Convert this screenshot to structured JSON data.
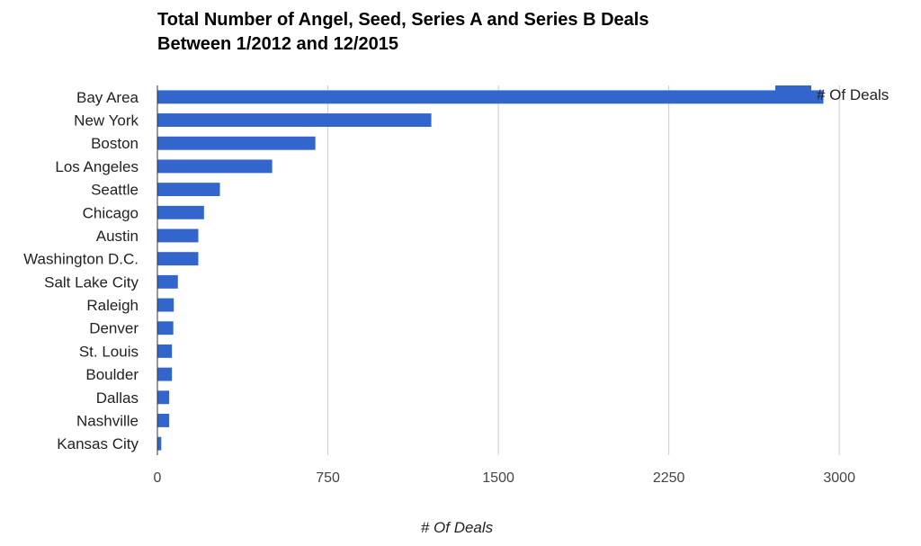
{
  "chart_data": {
    "type": "bar",
    "orientation": "horizontal",
    "title_lines": [
      "Total Number of Angel, Seed, Series A and Series B Deals",
      "Between 1/2012 and 12/2015"
    ],
    "categories": [
      "Bay Area",
      "New York",
      "Boston",
      "Los Angeles",
      "Seattle",
      "Chicago",
      "Austin",
      "Washington D.C.",
      "Salt Lake City",
      "Raleigh",
      "Denver",
      "St. Louis",
      "Boulder",
      "Dallas",
      "Nashville",
      "Kansas City"
    ],
    "series": [
      {
        "name": "# Of Deals",
        "color": "#3366cc",
        "values": [
          2930,
          1205,
          695,
          505,
          275,
          205,
          180,
          180,
          90,
          72,
          70,
          64,
          64,
          52,
          52,
          17
        ]
      }
    ],
    "xlabel": "# Of Deals",
    "ylabel": "",
    "xlim": [
      0,
      3300
    ],
    "xticks": [
      0,
      750,
      1500,
      2250,
      3000
    ],
    "xtick_labels": [
      "0",
      "750",
      "1500",
      "2250",
      "3000"
    ],
    "grid": true,
    "legend_position": "top-right"
  }
}
